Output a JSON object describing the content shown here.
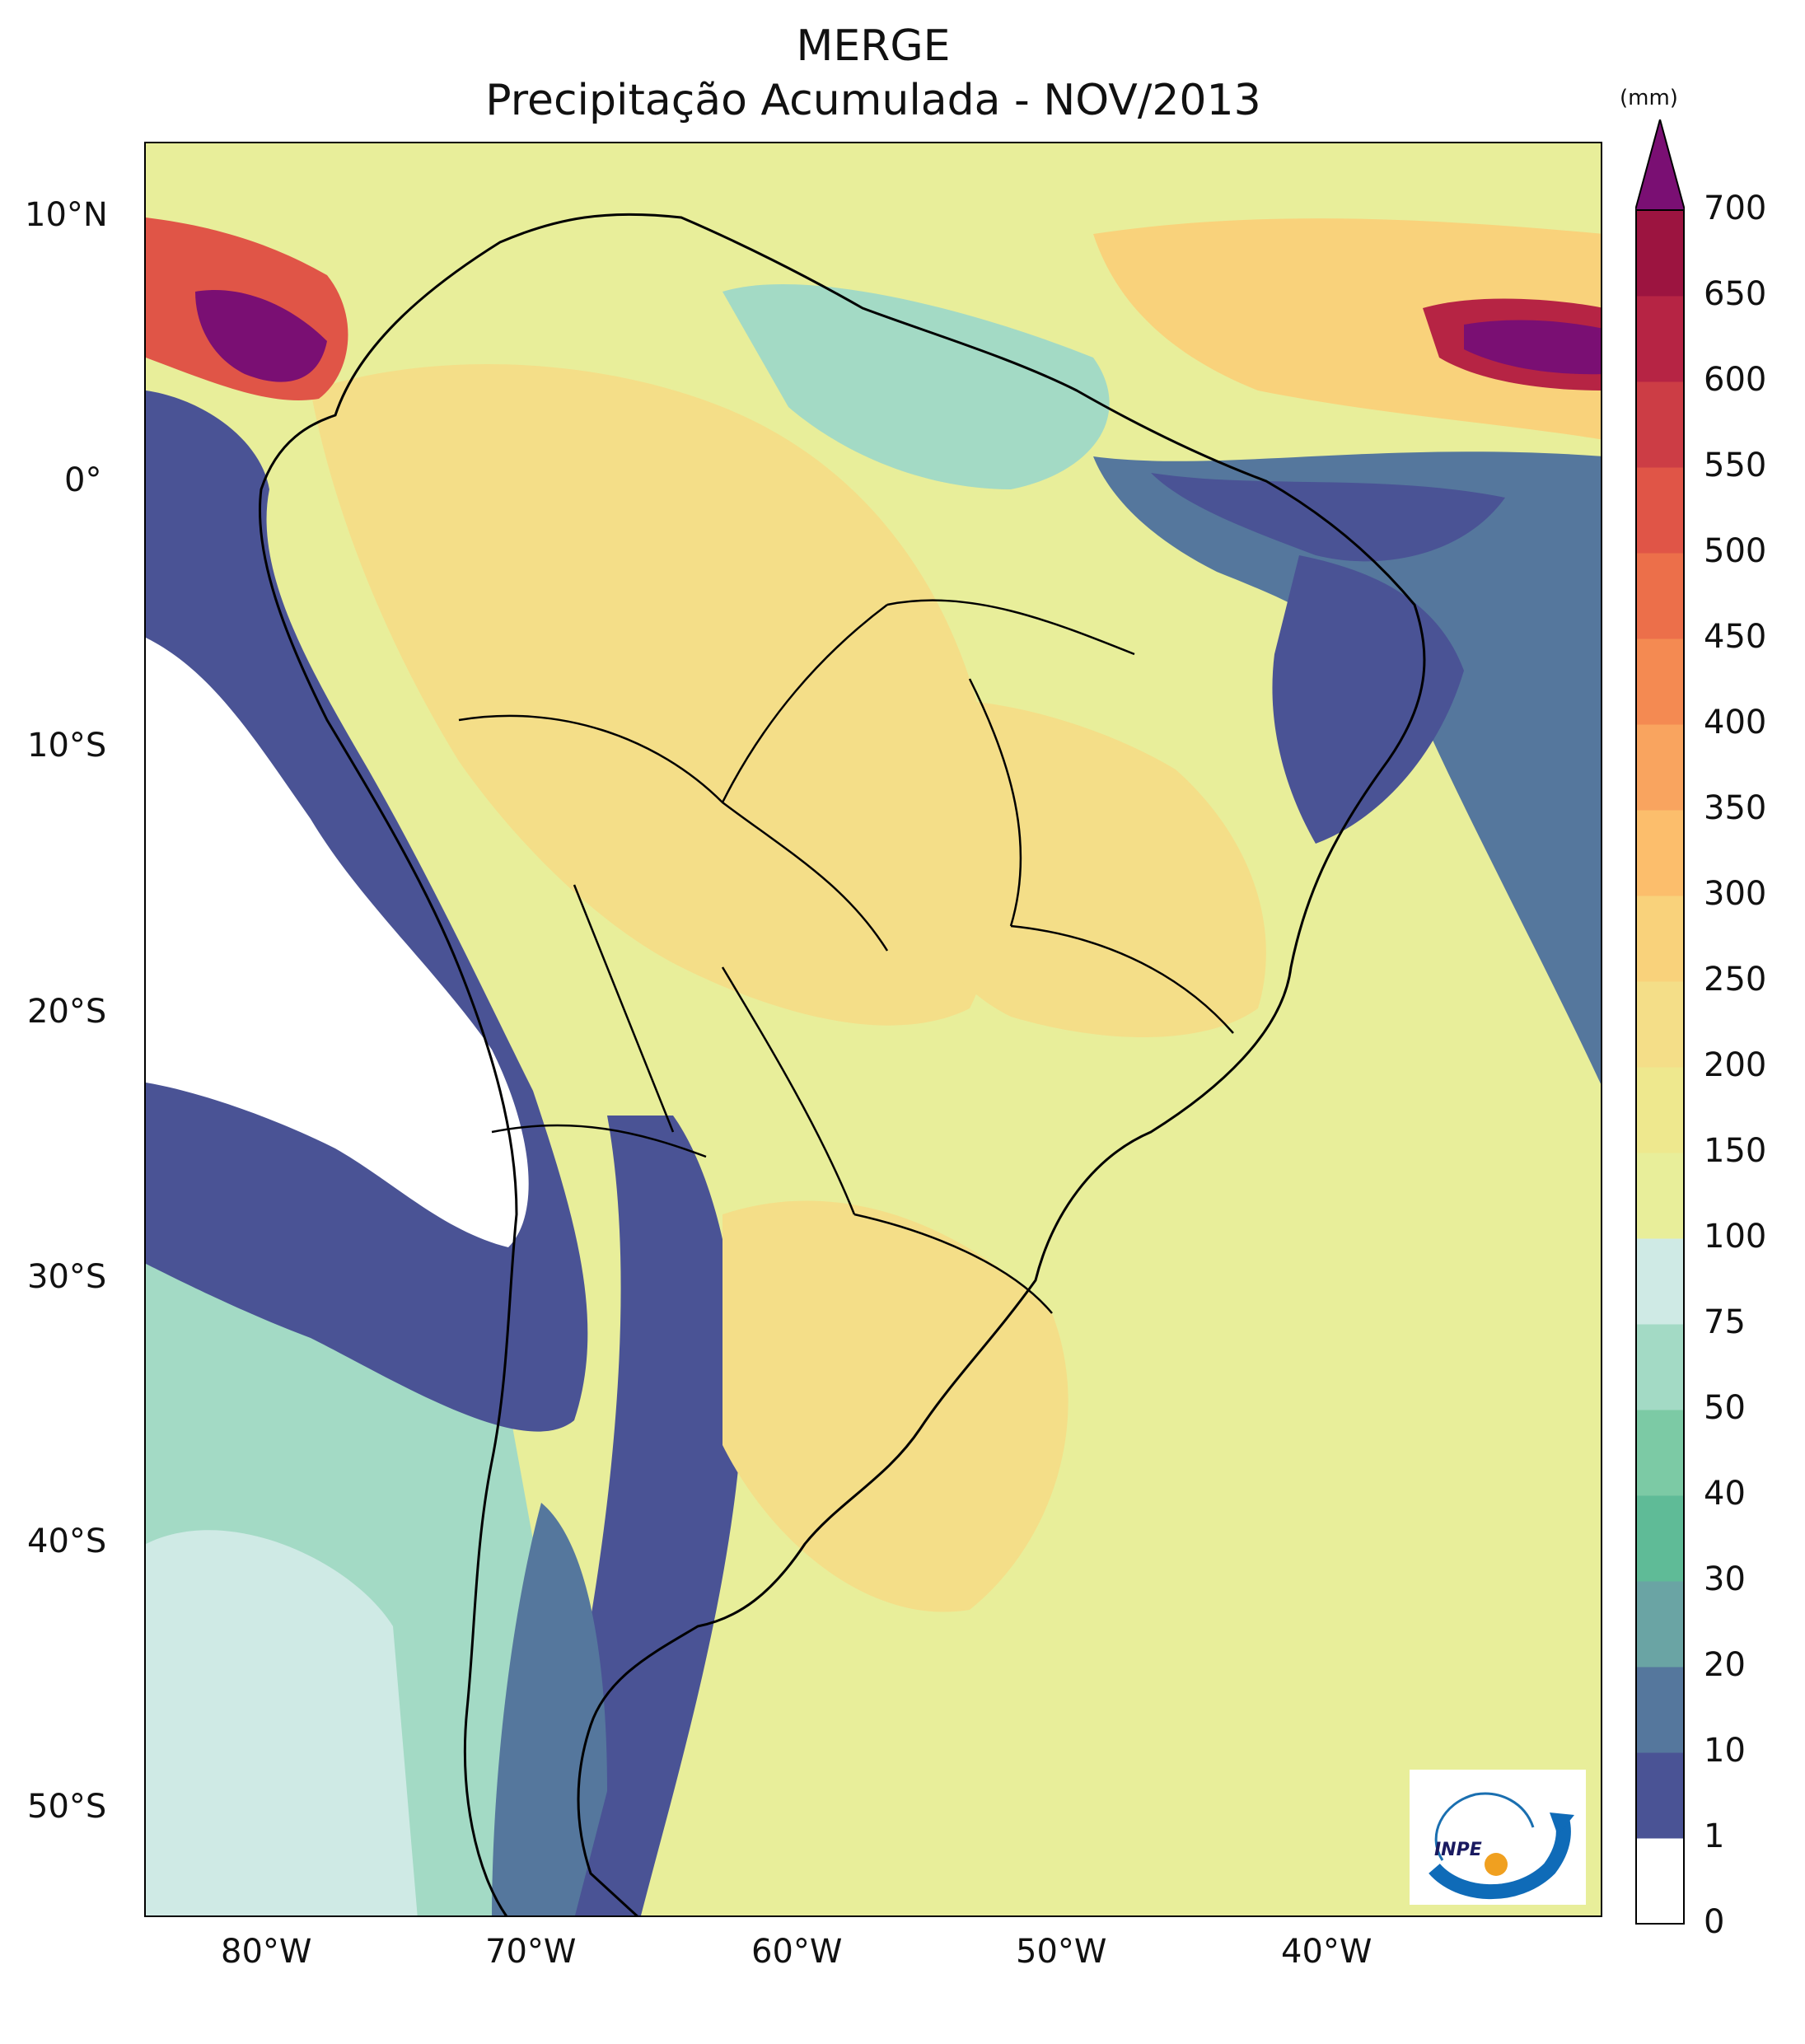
{
  "title": "MERGE",
  "subtitle": "Precipitação Acumulada - NOV/2013",
  "colorbar": {
    "unit": "(mm)",
    "levels": [
      {
        "value": 0,
        "label": "0",
        "color": "#ffffff"
      },
      {
        "value": 1,
        "label": "1",
        "color": "#4a5395"
      },
      {
        "value": 10,
        "label": "10",
        "color": "#55779d"
      },
      {
        "value": 20,
        "label": "20",
        "color": "#6aa4a4"
      },
      {
        "value": 30,
        "label": "30",
        "color": "#5fbb97"
      },
      {
        "value": 40,
        "label": "40",
        "color": "#7ccaa5"
      },
      {
        "value": 50,
        "label": "50",
        "color": "#a3dac5"
      },
      {
        "value": 75,
        "label": "75",
        "color": "#cfeae5"
      },
      {
        "value": 100,
        "label": "100",
        "color": "#e8ee9a"
      },
      {
        "value": 150,
        "label": "150",
        "color": "#eee88e"
      },
      {
        "value": 200,
        "label": "200",
        "color": "#f4de88"
      },
      {
        "value": 250,
        "label": "250",
        "color": "#f9d27b"
      },
      {
        "value": 300,
        "label": "300",
        "color": "#fcbe6c"
      },
      {
        "value": 350,
        "label": "350",
        "color": "#f9a45f"
      },
      {
        "value": 400,
        "label": "400",
        "color": "#f48a52"
      },
      {
        "value": 450,
        "label": "450",
        "color": "#ec6f4a"
      },
      {
        "value": 500,
        "label": "500",
        "color": "#e05547"
      },
      {
        "value": 550,
        "label": "550",
        "color": "#cc3d45"
      },
      {
        "value": 600,
        "label": "600",
        "color": "#b62444"
      },
      {
        "value": 650,
        "label": "650",
        "color": "#9c1440"
      },
      {
        "value": 700,
        "label": "700",
        "color": "#7a0f73"
      }
    ]
  },
  "axes": {
    "lat_labels": [
      "10°N",
      "0°",
      "10°S",
      "20°S",
      "30°S",
      "40°S",
      "50°S"
    ],
    "lon_labels": [
      "80°W",
      "70°W",
      "60°W",
      "50°W",
      "40°W"
    ]
  },
  "logo": {
    "text": "INPE"
  }
}
